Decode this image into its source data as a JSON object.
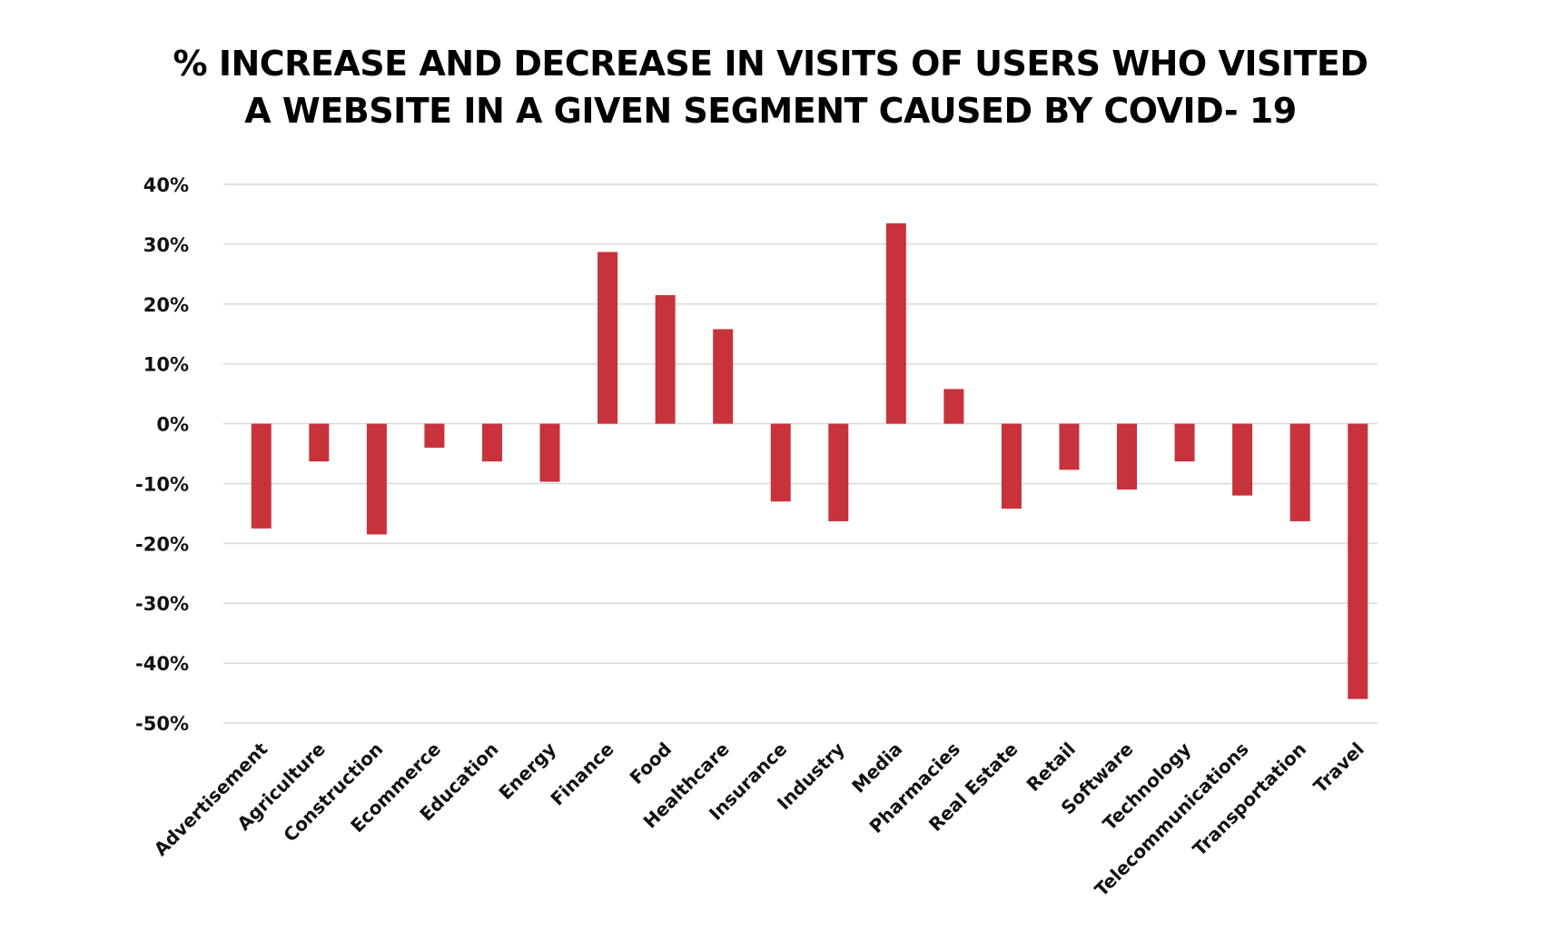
{
  "title_lines": [
    "% INCREASE AND DECREASE IN VISITS OF USERS WHO VISITED",
    "A WEBSITE IN A GIVEN SEGMENT CAUSED BY COVID- 19"
  ],
  "colors": {
    "bar": "#C8323A",
    "grid": "#D9D9D9",
    "text": "#111111"
  },
  "chart_data": {
    "type": "bar",
    "title": "% INCREASE AND DECREASE IN VISITS OF USERS WHO VISITED A WEBSITE IN A GIVEN SEGMENT CAUSED BY COVID- 19",
    "xlabel": "",
    "ylabel": "",
    "ylim": [
      -50,
      40
    ],
    "yticks": [
      40,
      30,
      20,
      10,
      0,
      -10,
      -20,
      -30,
      -40,
      -50
    ],
    "ytick_labels": [
      "40%",
      "30%",
      "20%",
      "10%",
      "0%",
      "-10%",
      "-20%",
      "-30%",
      "-40%",
      "-50%"
    ],
    "grid": true,
    "legend": "none",
    "categories": [
      "Advertisement",
      "Agriculture",
      "Construction",
      "Ecommerce",
      "Education",
      "Energy",
      "Finance",
      "Food",
      "Healthcare",
      "Insurance",
      "Industry",
      "Media",
      "Pharmacies",
      "Real Estate",
      "Retail",
      "Software",
      "Technology",
      "Telecommunications",
      "Transportation",
      "Travel"
    ],
    "values": [
      -17.5,
      -6.3,
      -18.5,
      -4,
      -6.3,
      -9.7,
      28.7,
      21.5,
      15.8,
      -13,
      -16.3,
      33.5,
      5.8,
      -14.2,
      -7.7,
      -11,
      -6.3,
      -12,
      -16.3,
      -46
    ]
  }
}
